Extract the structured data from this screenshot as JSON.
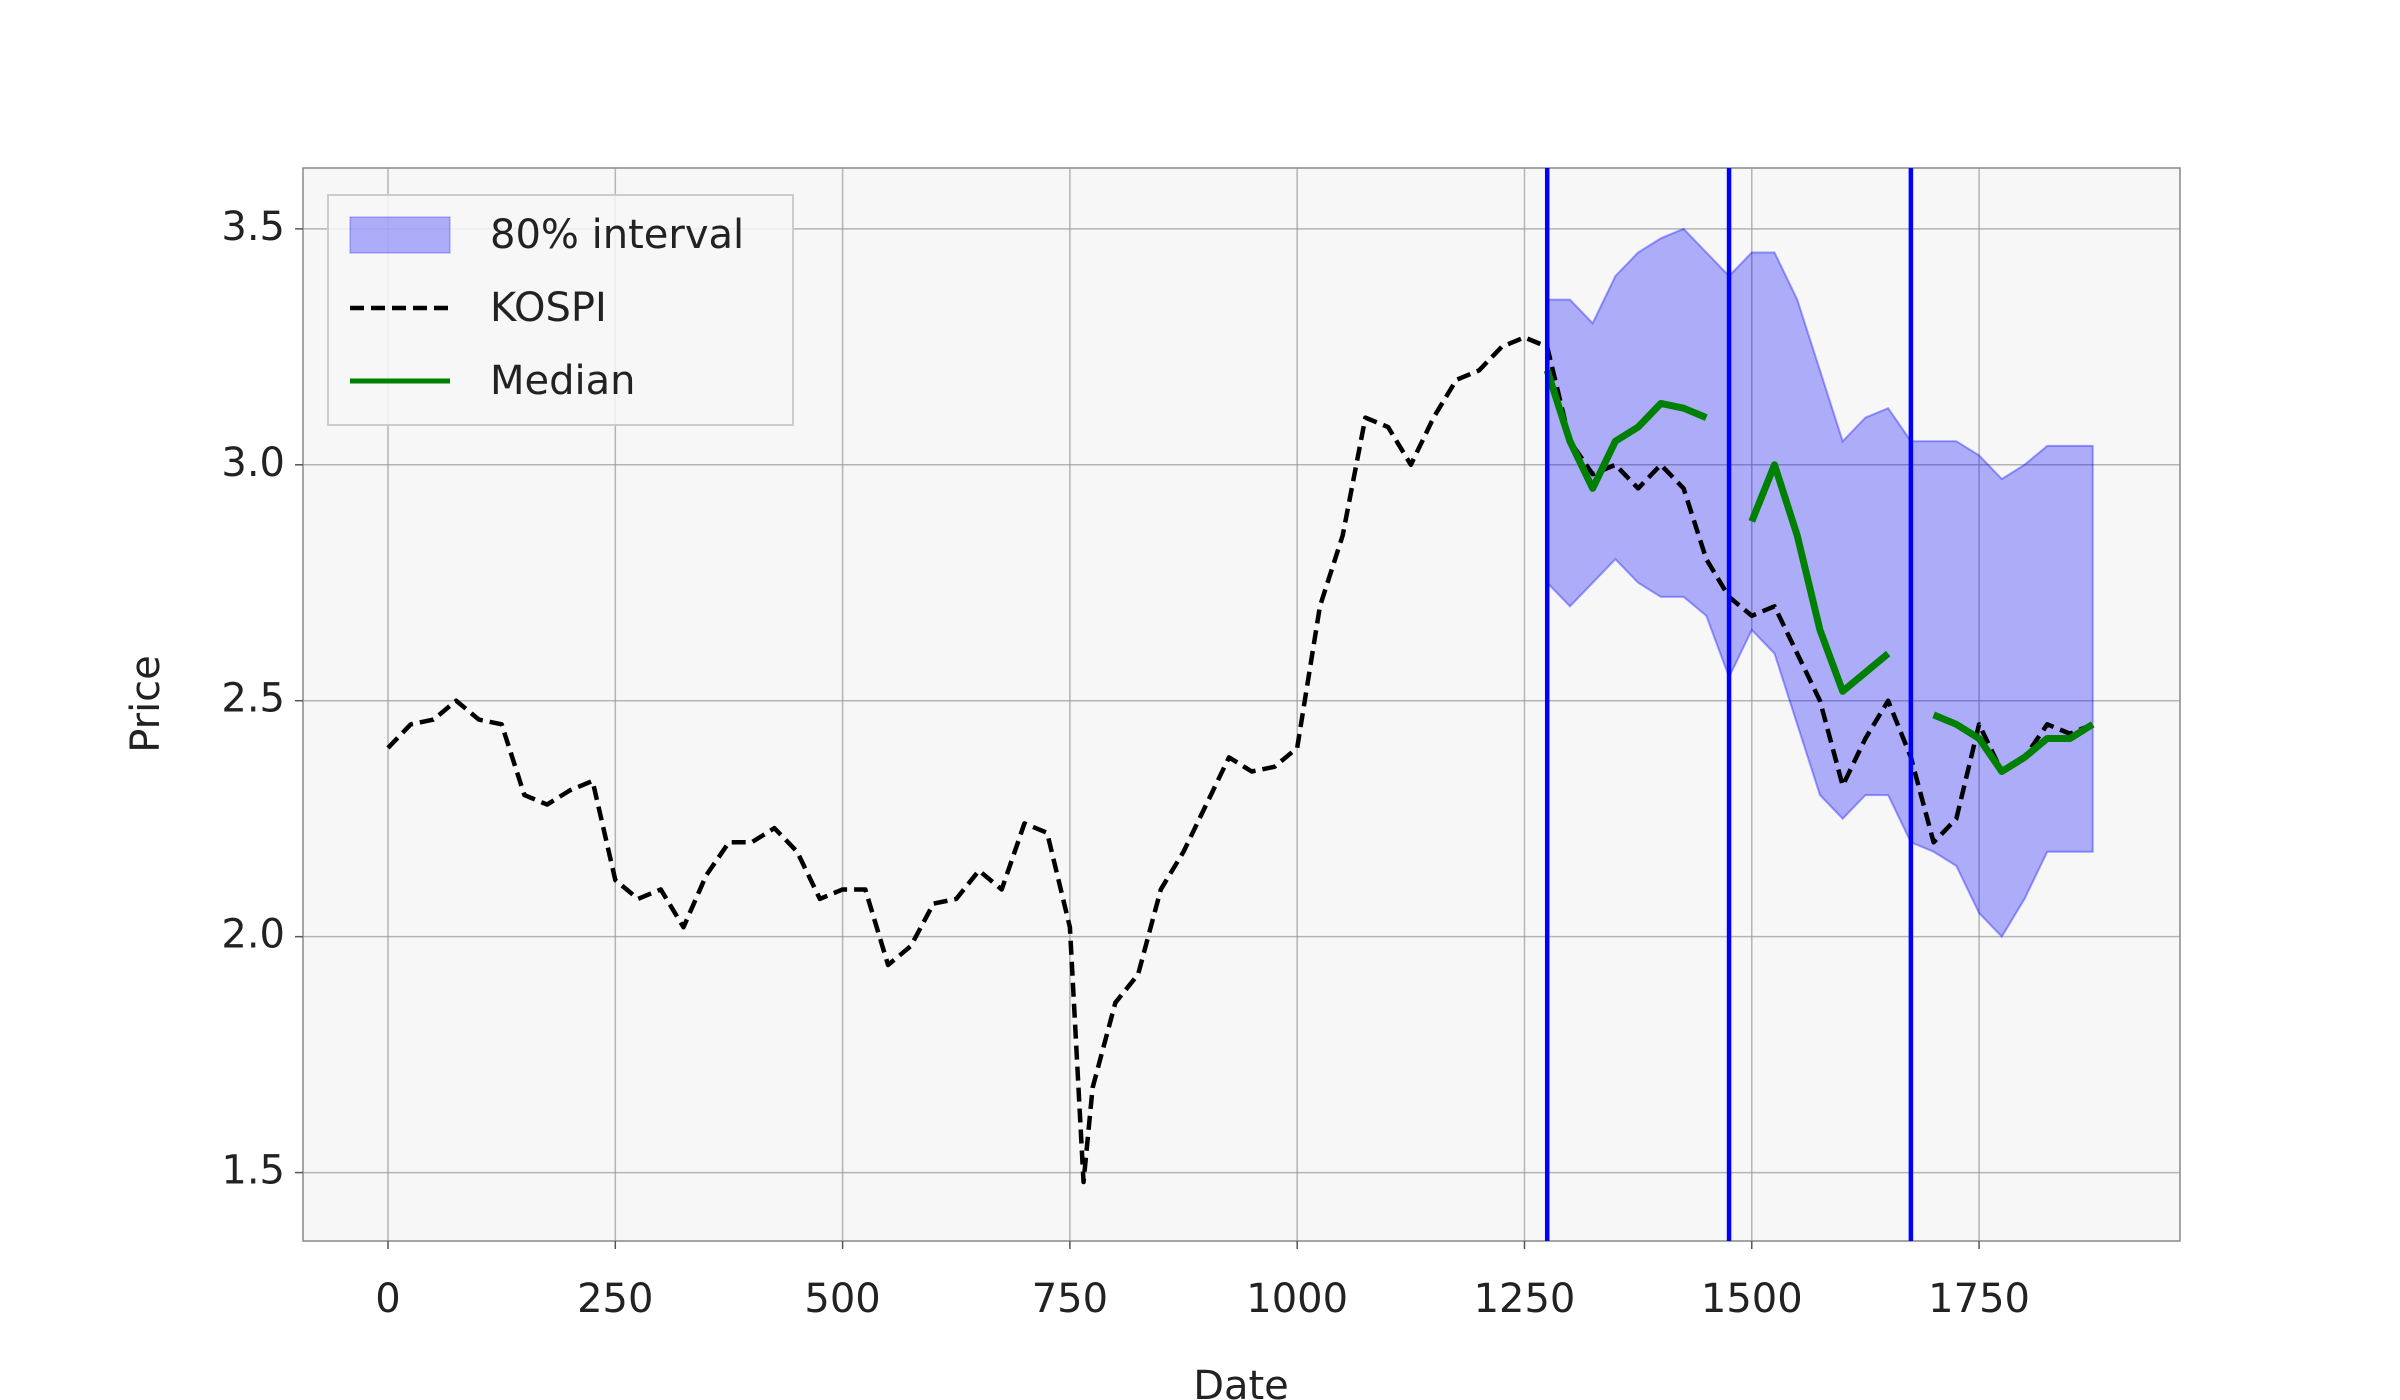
{
  "chart_data": {
    "type": "line",
    "xlabel": "Date",
    "ylabel": "Price",
    "xlim": [
      -93.5,
      1971
    ],
    "ylim": [
      1.355,
      3.629
    ],
    "xticks": [
      0,
      250,
      500,
      750,
      1000,
      1250,
      1500,
      1750
    ],
    "yticks": [
      1.5,
      {
        "value": 2,
        "label": "2.0"
      },
      2.5,
      {
        "value": 3,
        "label": "3.0"
      },
      3.5
    ],
    "grid": true,
    "legend": "upper left",
    "vlines": [
      1275,
      1475,
      1675
    ],
    "vline_color": "#0000ff",
    "x": [
      0,
      25,
      50,
      75,
      100,
      125,
      150,
      175,
      200,
      225,
      250,
      275,
      300,
      325,
      350,
      375,
      400,
      425,
      450,
      475,
      500,
      525,
      550,
      575,
      600,
      625,
      650,
      675,
      700,
      725,
      750,
      765,
      775,
      800,
      825,
      850,
      875,
      900,
      925,
      950,
      975,
      1000,
      1025,
      1050,
      1075,
      1100,
      1125,
      1150,
      1175,
      1200,
      1225,
      1250,
      1275,
      1300,
      1325,
      1350,
      1375,
      1400,
      1425,
      1450,
      1475,
      1500,
      1525,
      1550,
      1575,
      1600,
      1625,
      1650,
      1675,
      1700,
      1725,
      1750,
      1775,
      1800,
      1825,
      1850,
      1875
    ],
    "series": [
      {
        "name": "80% interval",
        "kind": "band",
        "color": "#0000ff",
        "upper": [
          null,
          null,
          null,
          null,
          null,
          null,
          null,
          null,
          null,
          null,
          null,
          null,
          null,
          null,
          null,
          null,
          null,
          null,
          null,
          null,
          null,
          null,
          null,
          null,
          null,
          null,
          null,
          null,
          null,
          null,
          null,
          null,
          null,
          null,
          null,
          null,
          null,
          null,
          null,
          null,
          null,
          null,
          null,
          null,
          null,
          null,
          null,
          null,
          null,
          null,
          null,
          null,
          3.35,
          3.35,
          3.3,
          3.4,
          3.45,
          3.48,
          3.5,
          3.45,
          3.4,
          3.45,
          3.45,
          3.35,
          3.2,
          3.05,
          3.1,
          3.12,
          3.05,
          3.05,
          3.05,
          3.02,
          2.97,
          3.0,
          3.04,
          3.04,
          3.04
        ],
        "lower": [
          null,
          null,
          null,
          null,
          null,
          null,
          null,
          null,
          null,
          null,
          null,
          null,
          null,
          null,
          null,
          null,
          null,
          null,
          null,
          null,
          null,
          null,
          null,
          null,
          null,
          null,
          null,
          null,
          null,
          null,
          null,
          null,
          null,
          null,
          null,
          null,
          null,
          null,
          null,
          null,
          null,
          null,
          null,
          null,
          null,
          null,
          null,
          null,
          null,
          null,
          null,
          null,
          2.75,
          2.7,
          2.75,
          2.8,
          2.75,
          2.72,
          2.72,
          2.68,
          2.55,
          2.65,
          2.6,
          2.45,
          2.3,
          2.25,
          2.3,
          2.3,
          2.2,
          2.18,
          2.15,
          2.05,
          2.0,
          2.08,
          2.18,
          2.18,
          2.18
        ]
      },
      {
        "name": "KOSPI",
        "kind": "line",
        "color": "#000000",
        "dashed": true,
        "values": [
          2.4,
          2.45,
          2.46,
          2.5,
          2.46,
          2.45,
          2.3,
          2.28,
          2.31,
          2.33,
          2.12,
          2.08,
          2.1,
          2.02,
          2.13,
          2.2,
          2.2,
          2.23,
          2.18,
          2.08,
          2.1,
          2.1,
          1.94,
          1.98,
          2.07,
          2.08,
          2.14,
          2.1,
          2.24,
          2.22,
          2.02,
          1.48,
          1.68,
          1.86,
          1.92,
          2.1,
          2.18,
          2.28,
          2.38,
          2.35,
          2.36,
          2.4,
          2.7,
          2.85,
          3.1,
          3.08,
          3.0,
          3.1,
          3.18,
          3.2,
          3.25,
          3.27,
          3.25,
          3.05,
          2.98,
          3.0,
          2.95,
          3.0,
          2.95,
          2.8,
          2.72,
          2.68,
          2.7,
          2.6,
          2.5,
          2.32,
          2.42,
          2.5,
          2.38,
          2.2,
          2.25,
          2.45,
          2.35,
          2.38,
          2.45,
          2.43,
          2.45
        ]
      },
      {
        "name": "Median",
        "kind": "line",
        "color": "#008000",
        "dashed": false,
        "values": [
          null,
          null,
          null,
          null,
          null,
          null,
          null,
          null,
          null,
          null,
          null,
          null,
          null,
          null,
          null,
          null,
          null,
          null,
          null,
          null,
          null,
          null,
          null,
          null,
          null,
          null,
          null,
          null,
          null,
          null,
          null,
          null,
          null,
          null,
          null,
          null,
          null,
          null,
          null,
          null,
          null,
          null,
          null,
          null,
          null,
          null,
          null,
          null,
          null,
          null,
          null,
          null,
          3.2,
          3.05,
          2.95,
          3.05,
          3.08,
          3.13,
          3.12,
          3.1,
          null,
          2.88,
          3.0,
          2.85,
          2.65,
          2.52,
          2.56,
          2.6,
          null,
          2.47,
          2.45,
          2.42,
          2.35,
          2.38,
          2.42,
          2.42,
          2.45
        ]
      }
    ]
  }
}
